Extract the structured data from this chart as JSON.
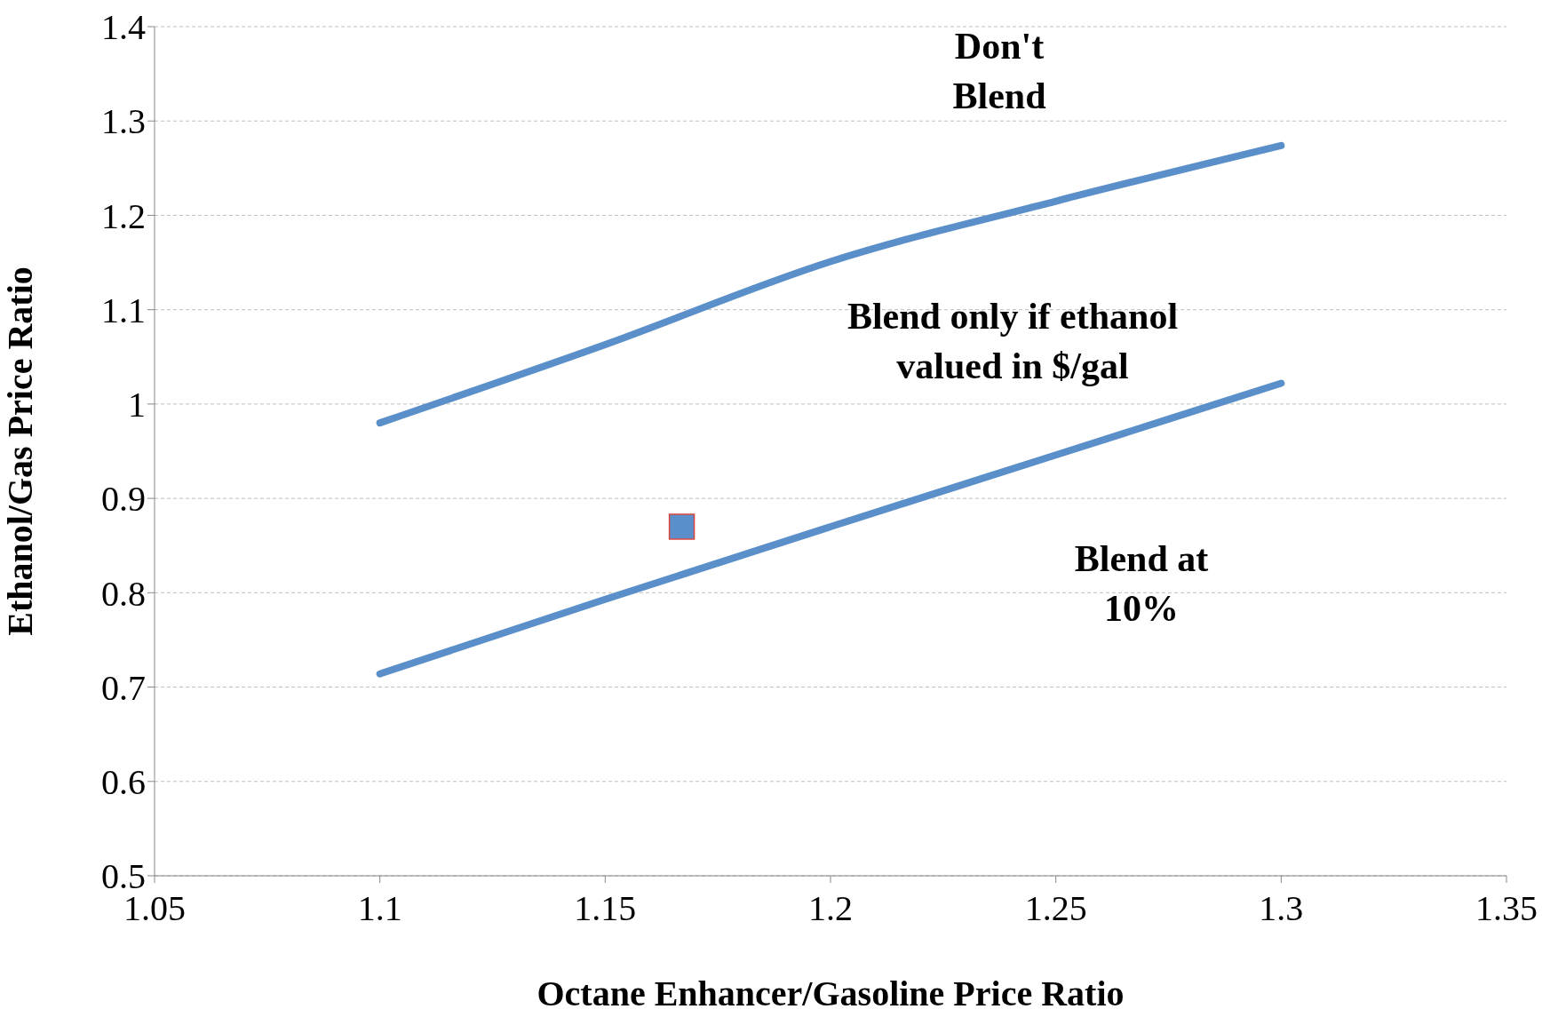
{
  "chart_data": {
    "type": "line",
    "xlabel": "Octane Enhancer/Gasoline Price Ratio",
    "ylabel": "Ethanol/Gas Price Ratio",
    "series": [
      {
        "color": "#5b8fc9",
        "x": [
          1.1,
          1.15,
          1.2,
          1.25,
          1.3
        ],
        "values": [
          0.98,
          1.063,
          1.151,
          1.215,
          1.274
        ]
      },
      {
        "color": "#5b8fc9",
        "x": [
          1.1,
          1.15,
          1.2,
          1.25,
          1.3
        ],
        "values": [
          0.714,
          0.793,
          0.87,
          0.946,
          1.022
        ]
      },
      {
        "type": "scatter",
        "color": "#5b8fc9",
        "marker": "square",
        "x": [
          1.167
        ],
        "values": [
          0.87
        ]
      }
    ],
    "xlim": [
      1.05,
      1.35
    ],
    "xticks": [
      1.05,
      1.1,
      1.15,
      1.2,
      1.25,
      1.3,
      1.35
    ],
    "ylim": [
      0.5,
      1.4
    ],
    "yticks": [
      0.5,
      0.6,
      0.7,
      0.8,
      0.9,
      1,
      1.1,
      1.2,
      1.3,
      1.4
    ],
    "grid": "y",
    "legend": false,
    "annotations": [
      "Don't\nBlend",
      "Blend only if ethanol\nvalued in $/gal",
      "Blend at\n10%"
    ]
  }
}
